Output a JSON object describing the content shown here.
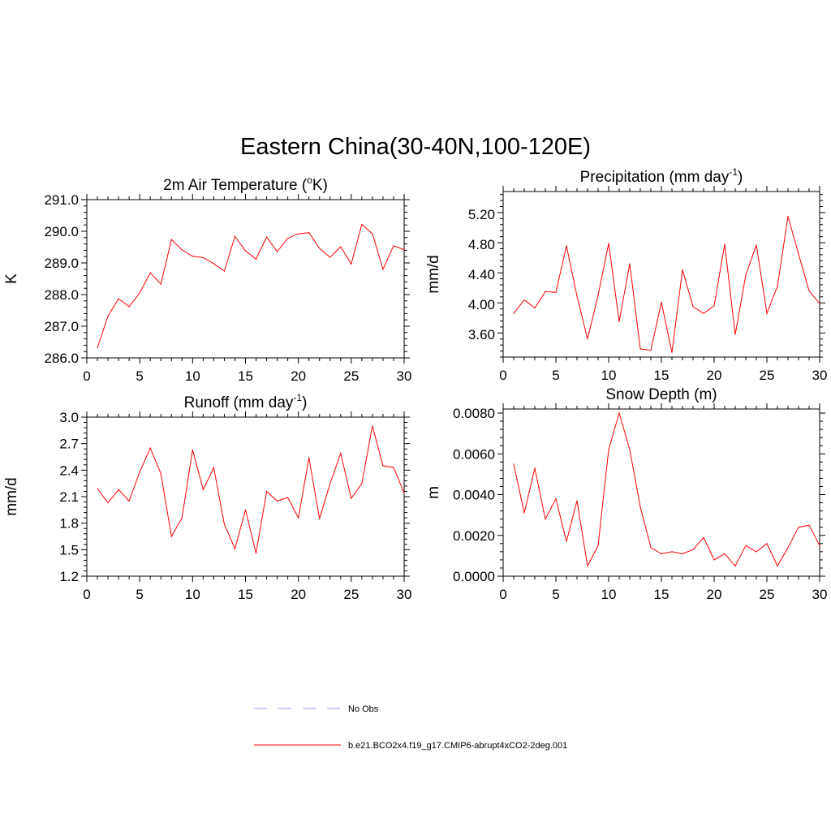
{
  "title": "Eastern China(30-40N,100-120E)",
  "chart_data": [
    {
      "type": "line",
      "id": "tas",
      "title_parts": [
        "2m Air Temperature (",
        "o",
        "K)"
      ],
      "title_sup_index": 1,
      "ylabel": "K",
      "xlim": [
        0,
        30
      ],
      "ylim": [
        286.0,
        291.0
      ],
      "xticks": [
        0,
        5,
        10,
        15,
        20,
        25,
        30
      ],
      "xtick_labels": [
        "0",
        "5",
        "10",
        "15",
        "20",
        "25",
        "30"
      ],
      "yticks": [
        286.0,
        287.0,
        288.0,
        289.0,
        290.0,
        291.0
      ],
      "ytick_labels": [
        "286.0",
        "287.0",
        "288.0",
        "289.0",
        "290.0",
        "291.0"
      ],
      "yminor_step": 0.2,
      "series": [
        {
          "name": "b.e21.BCO2x4.f19_g17.CMIP6-abrupt4xCO2-2deg.001",
          "color": "#ff0000",
          "x": [
            1,
            2,
            3,
            4,
            5,
            6,
            7,
            8,
            9,
            10,
            11,
            12,
            13,
            14,
            15,
            16,
            17,
            18,
            19,
            20,
            21,
            22,
            23,
            24,
            25,
            26,
            27,
            28,
            29,
            30
          ],
          "y": [
            286.32,
            287.32,
            287.87,
            287.62,
            288.05,
            288.69,
            288.33,
            289.74,
            289.41,
            289.21,
            289.17,
            288.98,
            288.74,
            289.84,
            289.38,
            289.12,
            289.82,
            289.36,
            289.78,
            289.92,
            289.96,
            289.46,
            289.18,
            289.51,
            288.97,
            290.22,
            289.92,
            288.8,
            289.54,
            289.42
          ]
        }
      ]
    },
    {
      "type": "line",
      "id": "precip",
      "title_parts": [
        "Precipitation (mm day",
        "-1",
        ")"
      ],
      "title_sup_index": 1,
      "ylabel": "mm/d",
      "xlim": [
        0,
        30
      ],
      "ylim": [
        3.3,
        5.5
      ],
      "xticks": [
        0,
        5,
        10,
        15,
        20,
        25,
        30
      ],
      "xtick_labels": [
        "0",
        "5",
        "10",
        "15",
        "20",
        "25",
        "30"
      ],
      "yticks": [
        3.6,
        4.0,
        4.4,
        4.8,
        5.2
      ],
      "ytick_labels": [
        "3.60",
        "4.00",
        "4.40",
        "4.80",
        "5.20"
      ],
      "yminor_step": 0.08,
      "series": [
        {
          "name": "b.e21.BCO2x4.f19_g17.CMIP6-abrupt4xCO2-2deg.001",
          "color": "#ff0000",
          "x": [
            1,
            2,
            3,
            4,
            5,
            6,
            7,
            8,
            9,
            10,
            11,
            12,
            13,
            14,
            15,
            16,
            17,
            18,
            19,
            20,
            21,
            22,
            23,
            24,
            25,
            26,
            27,
            28,
            29,
            30
          ],
          "y": [
            3.88,
            4.06,
            3.95,
            4.17,
            4.16,
            4.78,
            4.11,
            3.54,
            4.12,
            4.81,
            3.77,
            4.54,
            3.41,
            3.39,
            4.03,
            3.36,
            4.46,
            3.97,
            3.88,
            3.98,
            4.8,
            3.6,
            4.39,
            4.79,
            3.88,
            4.24,
            5.17,
            4.67,
            4.18,
            4.01
          ]
        }
      ]
    },
    {
      "type": "line",
      "id": "runoff",
      "title_parts": [
        "Runoff (mm day",
        "-1",
        ")"
      ],
      "title_sup_index": 1,
      "ylabel": "mm/d",
      "xlim": [
        0,
        30
      ],
      "ylim": [
        1.2,
        3.0
      ],
      "xticks": [
        0,
        5,
        10,
        15,
        20,
        25,
        30
      ],
      "xtick_labels": [
        "0",
        "5",
        "10",
        "15",
        "20",
        "25",
        "30"
      ],
      "yticks": [
        1.2,
        1.5,
        1.8,
        2.1,
        2.4,
        2.7,
        3.0
      ],
      "ytick_labels": [
        "1.2",
        "1.5",
        "1.8",
        "2.1",
        "2.4",
        "2.7",
        "3.0"
      ],
      "yminor_step": 0.06,
      "series": [
        {
          "name": "b.e21.BCO2x4.f19_g17.CMIP6-abrupt4xCO2-2deg.001",
          "color": "#ff0000",
          "x": [
            1,
            2,
            3,
            4,
            5,
            6,
            7,
            8,
            9,
            10,
            11,
            12,
            13,
            14,
            15,
            16,
            17,
            18,
            19,
            20,
            21,
            22,
            23,
            24,
            25,
            26,
            27,
            28,
            29,
            30
          ],
          "y": [
            2.19,
            2.03,
            2.18,
            2.05,
            2.38,
            2.65,
            2.36,
            1.65,
            1.86,
            2.63,
            2.18,
            2.43,
            1.79,
            1.51,
            1.95,
            1.46,
            2.16,
            2.05,
            2.09,
            1.86,
            2.54,
            1.85,
            2.25,
            2.59,
            2.08,
            2.25,
            2.9,
            2.45,
            2.43,
            2.14
          ]
        }
      ]
    },
    {
      "type": "line",
      "id": "snow",
      "title_parts": [
        "Snow Depth (m)"
      ],
      "title_sup_index": -1,
      "ylabel": "m",
      "xlim": [
        0,
        30
      ],
      "ylim": [
        0.0,
        0.0082
      ],
      "xticks": [
        0,
        5,
        10,
        15,
        20,
        25,
        30
      ],
      "xtick_labels": [
        "0",
        "5",
        "10",
        "15",
        "20",
        "25",
        "30"
      ],
      "yticks": [
        0.0,
        0.002,
        0.004,
        0.006,
        0.008
      ],
      "ytick_labels": [
        "0.0000",
        "0.0020",
        "0.0040",
        "0.0060",
        "0.0080"
      ],
      "yminor_step": 0.0004,
      "series": [
        {
          "name": "b.e21.BCO2x4.f19_g17.CMIP6-abrupt4xCO2-2deg.001",
          "color": "#ff0000",
          "x": [
            1,
            2,
            3,
            4,
            5,
            6,
            7,
            8,
            9,
            10,
            11,
            12,
            13,
            14,
            15,
            16,
            17,
            18,
            19,
            20,
            21,
            22,
            23,
            24,
            25,
            26,
            27,
            28,
            29,
            30
          ],
          "y": [
            0.0055,
            0.0031,
            0.0053,
            0.0028,
            0.0038,
            0.0017,
            0.0037,
            0.0005,
            0.0015,
            0.0062,
            0.008,
            0.0062,
            0.0034,
            0.0014,
            0.0011,
            0.0012,
            0.0011,
            0.0013,
            0.0019,
            0.0008,
            0.0011,
            0.0005,
            0.0015,
            0.0012,
            0.0016,
            0.0005,
            0.0014,
            0.0024,
            0.0025,
            0.0015
          ]
        }
      ]
    }
  ],
  "legend": [
    {
      "label": "No Obs",
      "color": "#9999ff",
      "style": "dashed"
    },
    {
      "label": "b.e21.BCO2x4.f19_g17.CMIP6-abrupt4xCO2-2deg.001",
      "color": "#ff0000",
      "style": "solid"
    }
  ]
}
